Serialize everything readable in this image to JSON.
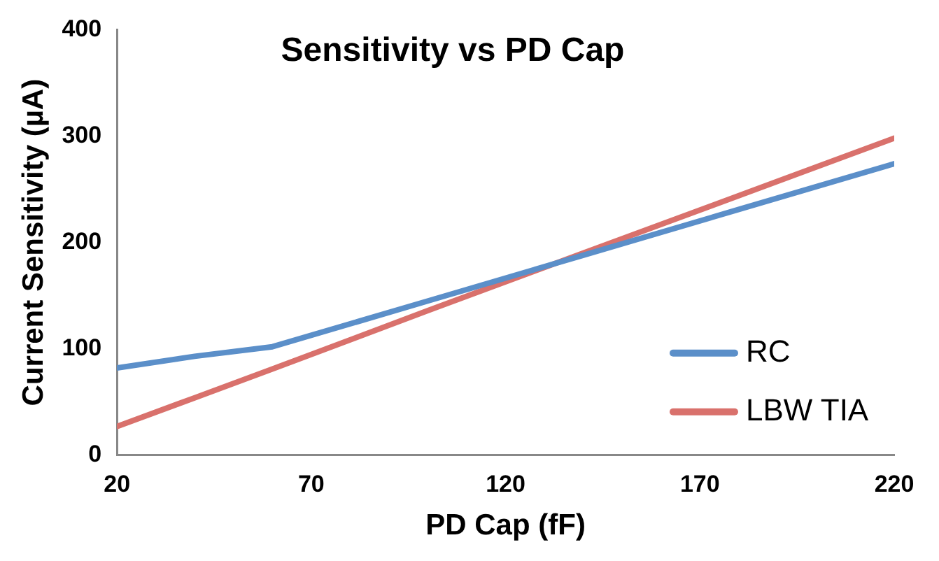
{
  "chart_data": {
    "type": "line",
    "title": "Sensitivity vs PD Cap",
    "xlabel": "PD Cap (fF)",
    "ylabel": "Current Sensitivity (µA)",
    "x": [
      20,
      40,
      60,
      100,
      140,
      180,
      220
    ],
    "series": [
      {
        "name": "RC",
        "color": "#5b8fc9",
        "values": [
          82,
          93,
          102,
          145,
          188,
          231,
          274
        ]
      },
      {
        "name": "LBW TIA",
        "color": "#d9716c",
        "values": [
          27,
          54,
          81,
          136,
          190,
          244,
          298
        ]
      }
    ],
    "xlim": [
      20,
      220
    ],
    "xticks": [
      20,
      70,
      120,
      170,
      220
    ],
    "ylim": [
      0,
      400
    ],
    "yticks": [
      0,
      100,
      200,
      300,
      400
    ],
    "grid": false,
    "legend": "bottom right",
    "marker": "none",
    "line_style": "solid"
  }
}
